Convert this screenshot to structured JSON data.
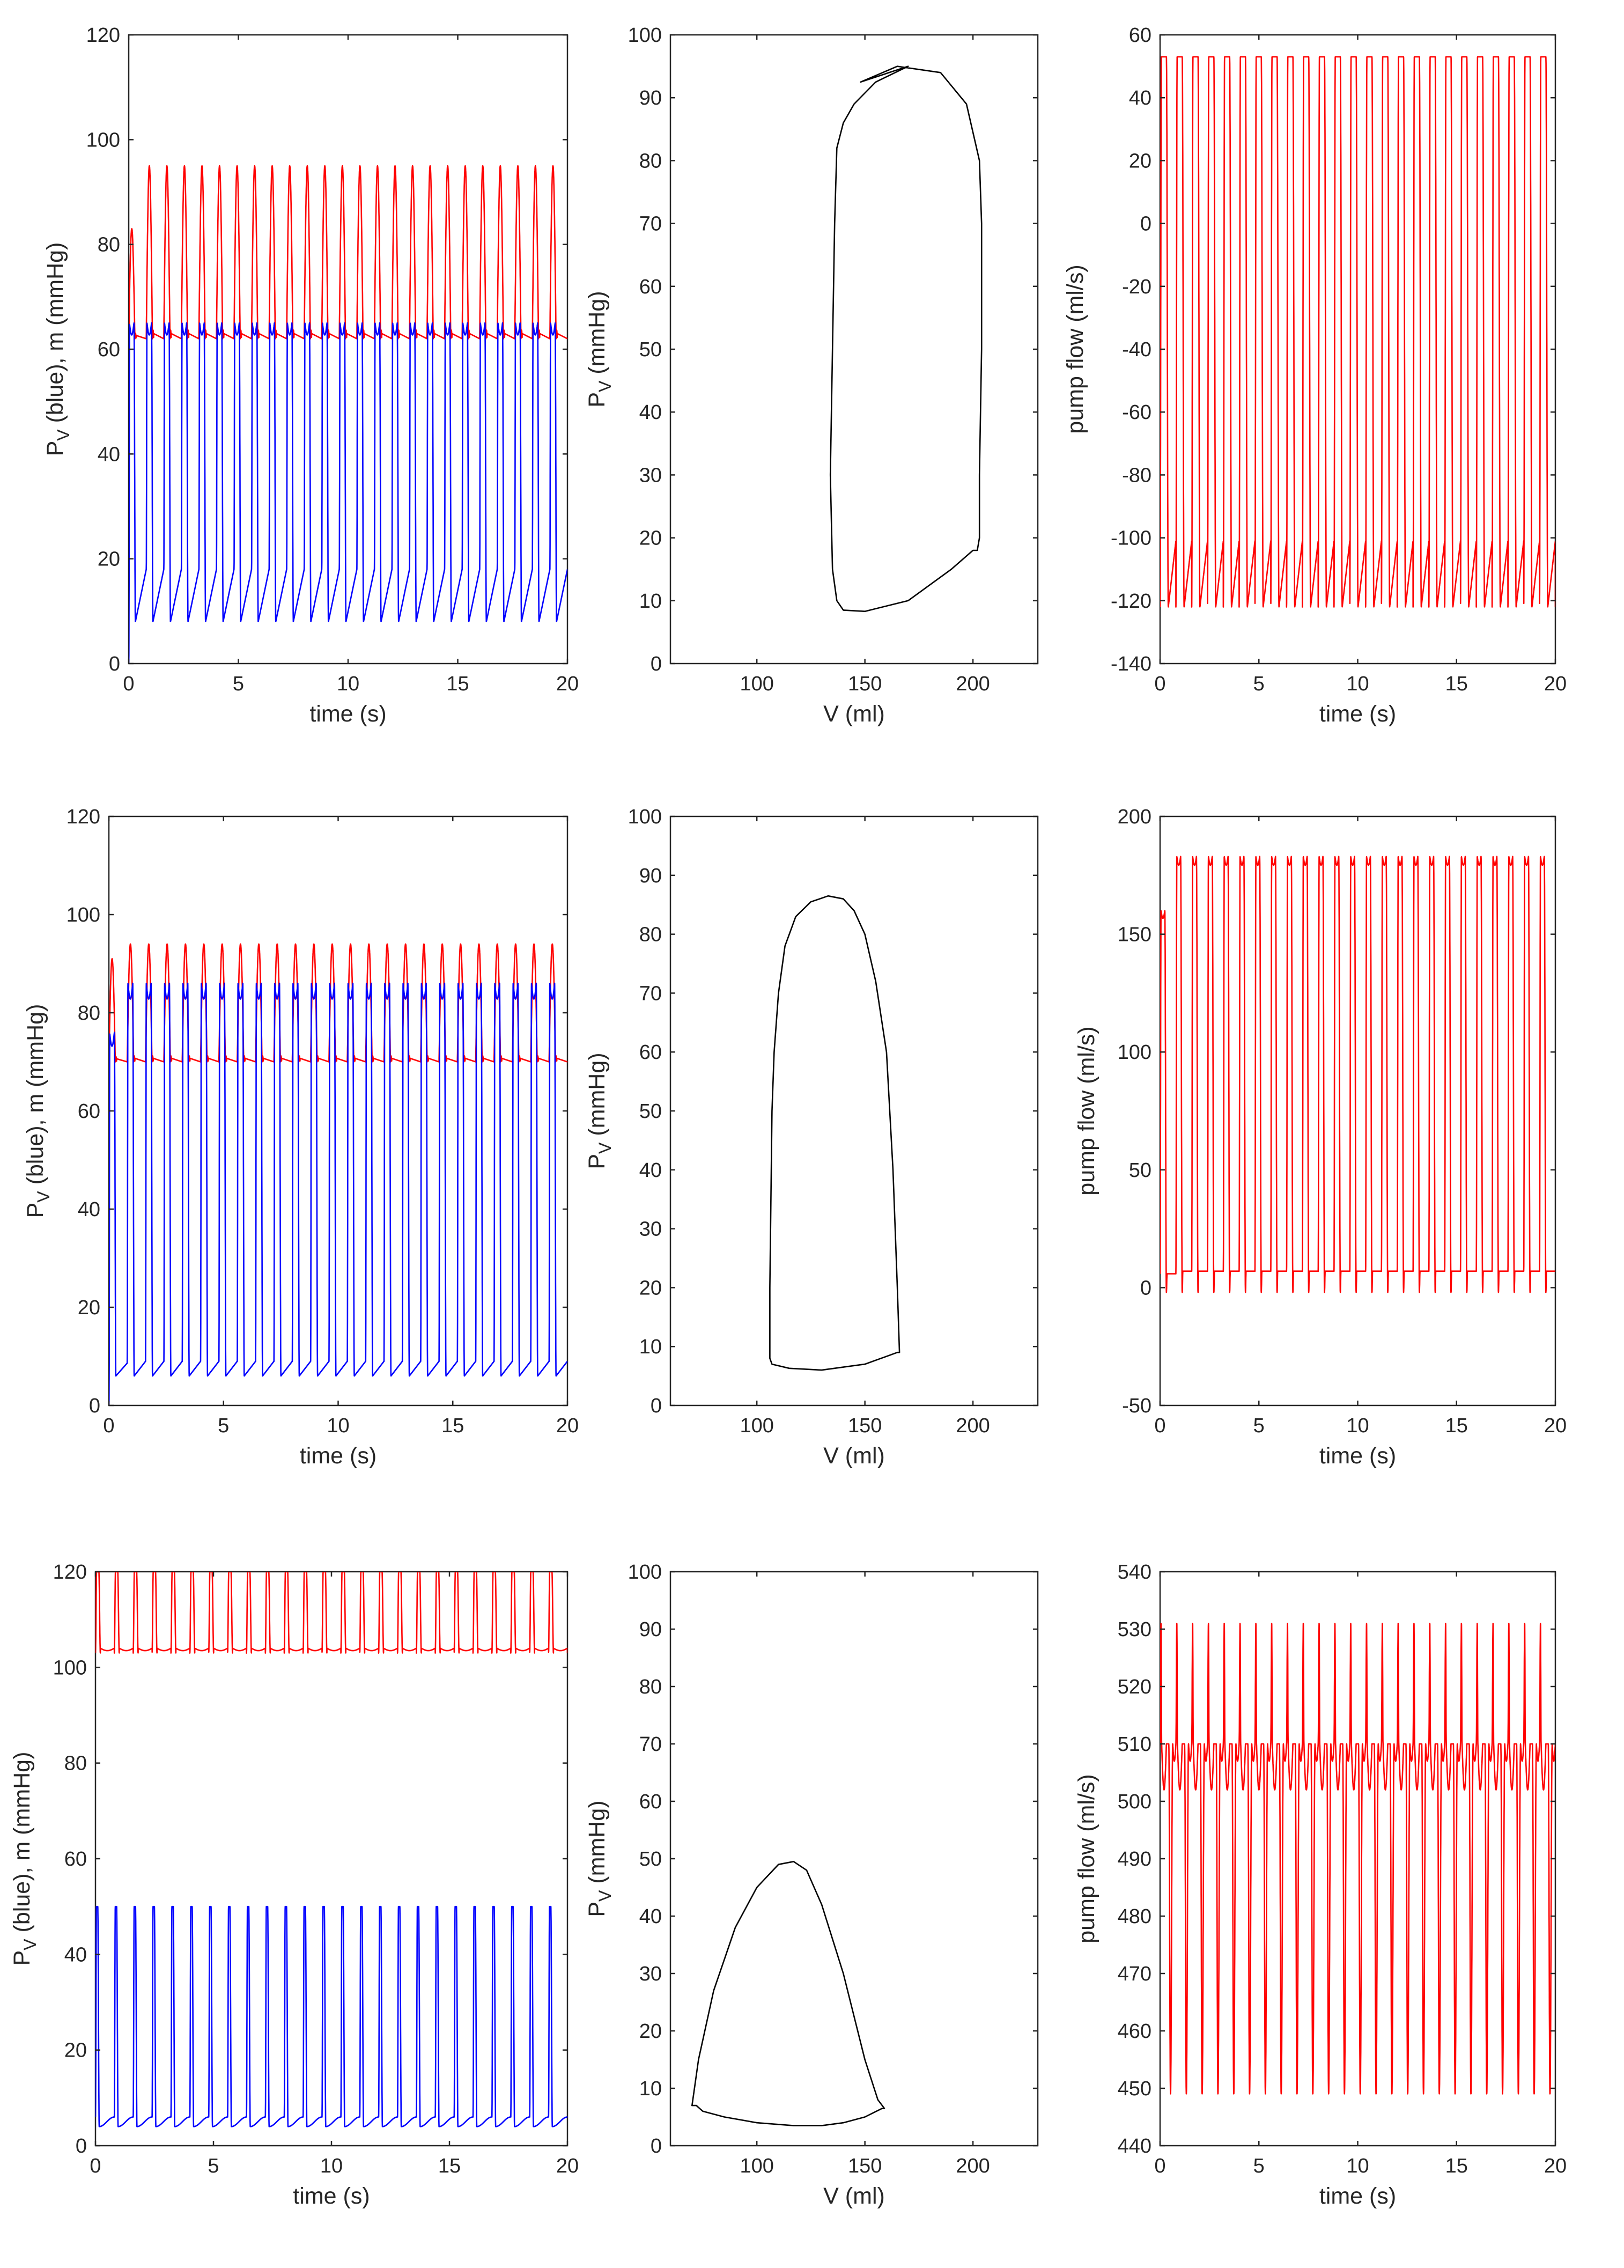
{
  "chart_data": [
    {
      "type": "line",
      "xlabel": "time (s)",
      "ylabel": "P_V (blue), m (mmHg)",
      "xlim": [
        0,
        20
      ],
      "ylim": [
        0,
        120
      ],
      "xticks": [
        0,
        5,
        10,
        15,
        20
      ],
      "yticks": [
        0,
        20,
        40,
        60,
        80,
        100,
        120
      ],
      "grid": false,
      "series": [
        {
          "color": "#ff0000",
          "period_s": 0.8,
          "start_value": 60,
          "first_peak": 83,
          "min": 62,
          "max": 95
        },
        {
          "color": "#0000ff",
          "period_s": 0.8,
          "start_value": 0,
          "min": 8,
          "max": 65,
          "plateau": 18
        }
      ]
    },
    {
      "type": "line",
      "xlabel": "V (ml)",
      "ylabel": "P_V (mmHg)",
      "xlim": [
        60,
        230
      ],
      "ylim": [
        0,
        100
      ],
      "xticks": [
        100,
        150,
        200
      ],
      "yticks": [
        0,
        10,
        20,
        30,
        40,
        50,
        60,
        70,
        80,
        90,
        100
      ],
      "grid": false,
      "series": [
        {
          "color": "#000000",
          "x": [
            148,
            165,
            185,
            197,
            203,
            204,
            204,
            203,
            203,
            202,
            201,
            200,
            200,
            190,
            170,
            150,
            140,
            137,
            135,
            134,
            135,
            136,
            137,
            140,
            145,
            155,
            170
          ],
          "y": [
            92.5,
            95,
            94,
            89,
            80,
            70,
            50,
            30,
            20,
            18,
            18,
            18,
            18,
            15,
            10,
            8.3,
            8.5,
            10,
            15,
            30,
            50,
            70,
            82,
            86,
            89,
            92.5,
            95
          ]
        }
      ]
    },
    {
      "type": "line",
      "xlabel": "time (s)",
      "ylabel": "pump flow (ml/s)",
      "xlim": [
        0,
        20
      ],
      "ylim": [
        -140,
        60
      ],
      "xticks": [
        0,
        5,
        10,
        15,
        20
      ],
      "yticks": [
        -140,
        -120,
        -100,
        -80,
        -60,
        -40,
        -20,
        0,
        20,
        40,
        60
      ],
      "grid": false,
      "series": [
        {
          "color": "#ff0000",
          "period_s": 0.8,
          "min": -122,
          "max": 53
        }
      ]
    },
    {
      "type": "line",
      "xlabel": "time (s)",
      "ylabel": "P_V (blue), m (mmHg)",
      "xlim": [
        0,
        20
      ],
      "ylim": [
        0,
        120
      ],
      "xticks": [
        0,
        5,
        10,
        15,
        20
      ],
      "yticks": [
        0,
        20,
        40,
        60,
        80,
        100,
        120
      ],
      "grid": false,
      "series": [
        {
          "color": "#ff0000",
          "period_s": 0.8,
          "start_value": 75,
          "first_peak": 91,
          "min": 70,
          "max": 94
        },
        {
          "color": "#0000ff",
          "period_s": 0.8,
          "start_value": 0,
          "first_peak": 76,
          "min": 6,
          "max": 86,
          "plateau": 9
        }
      ]
    },
    {
      "type": "line",
      "xlabel": "V (ml)",
      "ylabel": "P_V (mmHg)",
      "xlim": [
        60,
        230
      ],
      "ylim": [
        0,
        100
      ],
      "xticks": [
        100,
        150,
        200
      ],
      "yticks": [
        0,
        10,
        20,
        30,
        40,
        50,
        60,
        70,
        80,
        90,
        100
      ],
      "grid": false,
      "series": [
        {
          "color": "#000000",
          "x": [
            166,
            166,
            165,
            150,
            130,
            115,
            107,
            106,
            106,
            107,
            108,
            110,
            113,
            118,
            125,
            133,
            140,
            145,
            150,
            155,
            160,
            163,
            165,
            166
          ],
          "y": [
            9,
            9,
            9,
            7,
            6,
            6.3,
            7,
            8,
            20,
            50,
            60,
            70,
            78,
            83,
            85.5,
            86.5,
            86,
            84,
            80,
            72,
            60,
            40,
            20,
            9
          ]
        }
      ]
    },
    {
      "type": "line",
      "xlabel": "time (s)",
      "ylabel": "pump flow (ml/s)",
      "xlim": [
        0,
        20
      ],
      "ylim": [
        -50,
        200
      ],
      "xticks": [
        0,
        5,
        10,
        15,
        20
      ],
      "yticks": [
        -50,
        0,
        50,
        100,
        150,
        200
      ],
      "grid": false,
      "series": [
        {
          "color": "#ff0000",
          "period_s": 0.8,
          "first_peak": 160,
          "min": -2,
          "max": 183,
          "plateau": 7
        }
      ]
    },
    {
      "type": "line",
      "xlabel": "time (s)",
      "ylabel": "P_V (blue), m (mmHg)",
      "xlim": [
        0,
        20
      ],
      "ylim": [
        0,
        120
      ],
      "xticks": [
        0,
        5,
        10,
        15,
        20
      ],
      "yticks": [
        0,
        20,
        40,
        60,
        80,
        100,
        120
      ],
      "grid": false,
      "series": [
        {
          "color": "#ff0000",
          "period_s": 0.8,
          "min": 103,
          "max": 120,
          "plateau": 104
        },
        {
          "color": "#0000ff",
          "period_s": 0.8,
          "min": 4,
          "max": 50,
          "plateau": 6
        }
      ]
    },
    {
      "type": "line",
      "xlabel": "V (ml)",
      "ylabel": "P_V (mmHg)",
      "xlim": [
        60,
        230
      ],
      "ylim": [
        0,
        100
      ],
      "xticks": [
        100,
        150,
        200
      ],
      "yticks": [
        0,
        10,
        20,
        30,
        40,
        50,
        60,
        70,
        80,
        90,
        100
      ],
      "grid": false,
      "series": [
        {
          "color": "#000000",
          "x": [
            159,
            158,
            150,
            140,
            130,
            117,
            100,
            85,
            75,
            72,
            70,
            73,
            80,
            90,
            100,
            110,
            117,
            123,
            130,
            140,
            150,
            156,
            159
          ],
          "y": [
            6.5,
            6.5,
            5,
            4,
            3.5,
            3.5,
            4,
            5,
            6,
            7,
            7,
            15,
            27,
            38,
            45,
            49,
            49.5,
            48,
            42,
            30,
            15,
            8,
            6.5
          ]
        }
      ]
    },
    {
      "type": "line",
      "xlabel": "time (s)",
      "ylabel": "pump flow (ml/s)",
      "xlim": [
        0,
        20
      ],
      "ylim": [
        440,
        540
      ],
      "xticks": [
        0,
        5,
        10,
        15,
        20
      ],
      "yticks": [
        440,
        450,
        460,
        470,
        480,
        490,
        500,
        510,
        520,
        530,
        540
      ],
      "grid": false,
      "series": [
        {
          "color": "#ff0000",
          "period_s": 0.8,
          "min": 449,
          "max": 531,
          "plateau": 510
        }
      ]
    }
  ]
}
